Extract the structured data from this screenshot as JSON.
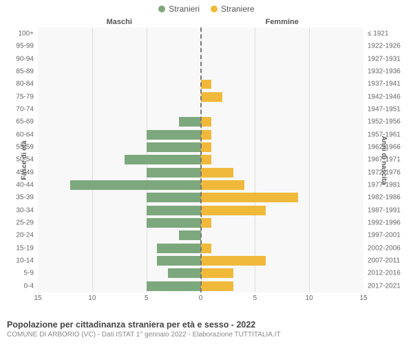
{
  "legend": {
    "male": {
      "label": "Stranieri",
      "color": "#7da87d"
    },
    "female": {
      "label": "Straniere",
      "color": "#f0b93a"
    }
  },
  "headers": {
    "male": "Maschi",
    "female": "Femmine"
  },
  "axis_titles": {
    "left": "Fasce di età",
    "right": "Anni di nascita"
  },
  "x": {
    "min": -15,
    "max": 15,
    "ticks": [
      15,
      10,
      5,
      0,
      5,
      10,
      15
    ],
    "tick_positions_pct": [
      0,
      16.67,
      33.33,
      50,
      66.67,
      83.33,
      100
    ]
  },
  "grid_positions_pct": [
    16.67,
    33.33,
    50,
    66.67,
    83.33
  ],
  "colors": {
    "male_bar": "#7da87d",
    "female_bar": "#f0b93a",
    "bg": "#f8f8f8",
    "grid": "#dddddd"
  },
  "max_value": 15,
  "rows": [
    {
      "age": "100+",
      "year": "≤ 1921",
      "m": 0,
      "f": 0
    },
    {
      "age": "95-99",
      "year": "1922-1926",
      "m": 0,
      "f": 0
    },
    {
      "age": "90-94",
      "year": "1927-1931",
      "m": 0,
      "f": 0
    },
    {
      "age": "85-89",
      "year": "1932-1936",
      "m": 0,
      "f": 0
    },
    {
      "age": "80-84",
      "year": "1937-1941",
      "m": 0,
      "f": 1
    },
    {
      "age": "75-79",
      "year": "1942-1946",
      "m": 0,
      "f": 2
    },
    {
      "age": "70-74",
      "year": "1947-1951",
      "m": 0,
      "f": 0
    },
    {
      "age": "65-69",
      "year": "1952-1956",
      "m": 2,
      "f": 1
    },
    {
      "age": "60-64",
      "year": "1957-1961",
      "m": 5,
      "f": 1
    },
    {
      "age": "55-59",
      "year": "1962-1966",
      "m": 5,
      "f": 1
    },
    {
      "age": "50-54",
      "year": "1967-1971",
      "m": 7,
      "f": 1
    },
    {
      "age": "45-49",
      "year": "1972-1976",
      "m": 5,
      "f": 3
    },
    {
      "age": "40-44",
      "year": "1977-1981",
      "m": 12,
      "f": 4
    },
    {
      "age": "35-39",
      "year": "1982-1986",
      "m": 5,
      "f": 9
    },
    {
      "age": "30-34",
      "year": "1987-1991",
      "m": 5,
      "f": 6
    },
    {
      "age": "25-29",
      "year": "1992-1996",
      "m": 5,
      "f": 1
    },
    {
      "age": "20-24",
      "year": "1997-2001",
      "m": 2,
      "f": 0
    },
    {
      "age": "15-19",
      "year": "2002-2006",
      "m": 4,
      "f": 1
    },
    {
      "age": "10-14",
      "year": "2007-2011",
      "m": 4,
      "f": 6
    },
    {
      "age": "5-9",
      "year": "2012-2016",
      "m": 3,
      "f": 3
    },
    {
      "age": "0-4",
      "year": "2017-2021",
      "m": 5,
      "f": 3
    }
  ],
  "footer": {
    "title": "Popolazione per cittadinanza straniera per età e sesso - 2022",
    "subtitle": "COMUNE DI ARBORIO (VC) - Dati ISTAT 1° gennaio 2022 - Elaborazione TUTTITALIA.IT"
  }
}
